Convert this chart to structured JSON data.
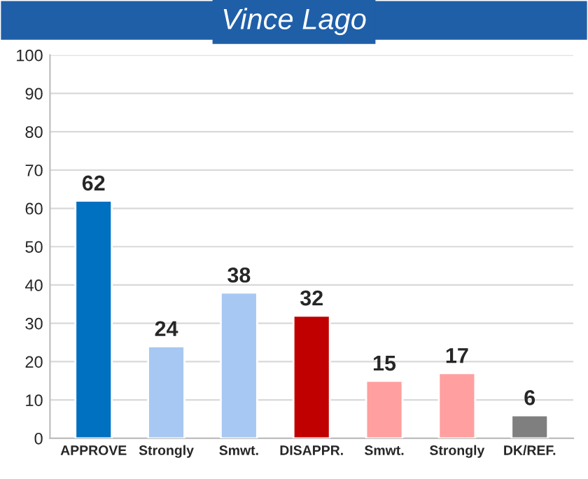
{
  "chart_data": {
    "type": "bar",
    "title": "Vince Lago",
    "categories": [
      "APPROVE",
      "Strongly",
      "Smwt.",
      "DISAPPR.",
      "Smwt.",
      "Strongly",
      "DK/REF."
    ],
    "values": [
      62,
      24,
      38,
      32,
      15,
      17,
      6
    ],
    "colors": [
      "#0070c0",
      "#a6c8f2",
      "#a6c8f2",
      "#c00000",
      "#ff9f9f",
      "#ff9f9f",
      "#7f7f7f"
    ],
    "ylim": [
      0,
      100
    ],
    "yticks": [
      0,
      10,
      20,
      30,
      40,
      50,
      60,
      70,
      80,
      90,
      100
    ],
    "grid": "y",
    "data_labels": true
  }
}
